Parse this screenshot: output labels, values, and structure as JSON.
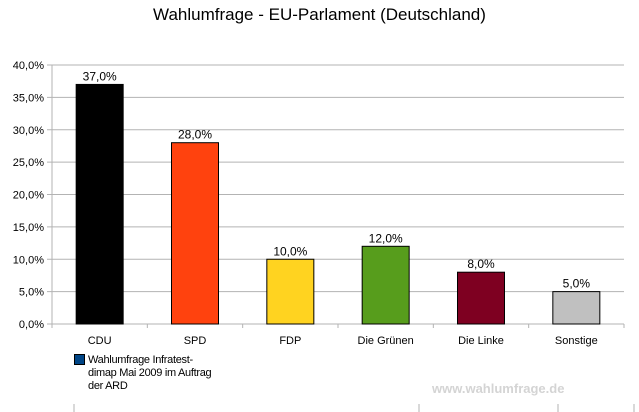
{
  "chart_data": {
    "type": "bar",
    "title": "Wahlumfrage - EU-Parlament (Deutschland)",
    "categories": [
      "CDU",
      "SPD",
      "FDP",
      "Die Grünen",
      "Die Linke",
      "Sonstige"
    ],
    "values": [
      37.0,
      28.0,
      10.0,
      12.0,
      8.0,
      5.0
    ],
    "data_labels": [
      "37,0%",
      "28,0%",
      "10,0%",
      "12,0%",
      "8,0%",
      "5,0%"
    ],
    "colors": [
      "#000000",
      "#ff420e",
      "#ffd320",
      "#579d1c",
      "#7e0021",
      "#c0c0c0"
    ],
    "ylim": [
      0,
      40
    ],
    "yticks": [
      0,
      5,
      10,
      15,
      20,
      25,
      30,
      35,
      40
    ],
    "ytick_labels": [
      "0,0%",
      "5,0%",
      "10,0%",
      "15,0%",
      "20,0%",
      "25,0%",
      "30,0%",
      "35,0%",
      "40,0%"
    ],
    "xlabel": "",
    "ylabel": "",
    "grid": true,
    "legend": {
      "placement": "bottom-left",
      "label": "Wahlumfrage Infratest-dimap Mai 2009 im Auftrag der ARD",
      "color": "#004586"
    }
  },
  "watermark": "www.wahlumfrage.de"
}
